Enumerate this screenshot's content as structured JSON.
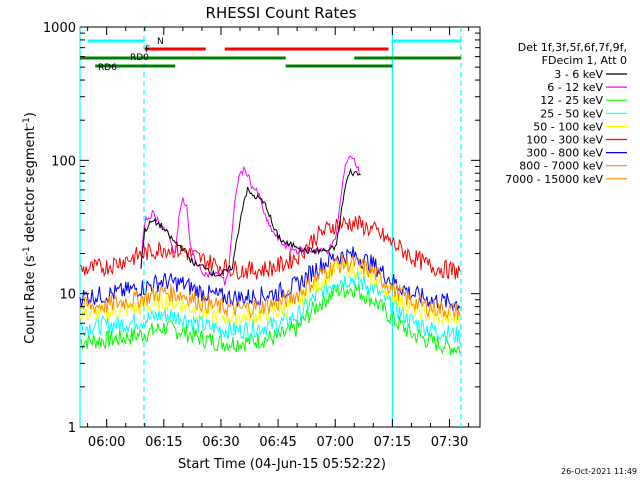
{
  "chart_data": {
    "type": "line",
    "title": "RHESSI Count Rates",
    "xlabel": "Start Time (04-Jun-15 05:52:22)",
    "ylabel_pre": "Count Rate (s",
    "ylabel_sup1": "-1",
    "ylabel_mid": " detector segment",
    "ylabel_sup2": "-1",
    "ylabel_post": ")",
    "xlim": [
      -7,
      98
    ],
    "ylim": [
      1,
      1000
    ],
    "yscale": "log",
    "x_ticks": [
      "06:00",
      "06:15",
      "06:30",
      "06:45",
      "07:00",
      "07:15",
      "07:30"
    ],
    "x_tick_minutes": [
      0,
      15,
      30,
      45,
      60,
      75,
      90
    ],
    "y_ticks": [
      "1",
      "10",
      "100",
      "1000"
    ],
    "legend_header": [
      "Det 1f,3f,5f,6f,7f,9f,",
      "FDecim 1, Att 0"
    ],
    "legend_position": "right",
    "series": [
      {
        "name": "3 - 6 keV",
        "color": "#000000",
        "points": [
          [
            9,
            16
          ],
          [
            10,
            30
          ],
          [
            12,
            35
          ],
          [
            14,
            33
          ],
          [
            16,
            28
          ],
          [
            18,
            24
          ],
          [
            20,
            22
          ],
          [
            22,
            18
          ],
          [
            24,
            16
          ],
          [
            26,
            16
          ],
          [
            28,
            14
          ],
          [
            30,
            14
          ],
          [
            32,
            15
          ],
          [
            33,
            16
          ],
          [
            35,
            35
          ],
          [
            36,
            50
          ],
          [
            37,
            60
          ],
          [
            38,
            55
          ],
          [
            40,
            52
          ],
          [
            42,
            45
          ],
          [
            44,
            30
          ],
          [
            46,
            25
          ],
          [
            48,
            23
          ],
          [
            50,
            23
          ],
          [
            52,
            21
          ],
          [
            54,
            21
          ],
          [
            56,
            21
          ],
          [
            58,
            21
          ],
          [
            60,
            22
          ],
          [
            61,
            30
          ],
          [
            62,
            50
          ],
          [
            63,
            70
          ],
          [
            64,
            82
          ],
          [
            65,
            80
          ],
          [
            66,
            80
          ],
          [
            67,
            75
          ]
        ]
      },
      {
        "name": "6 - 12 keV",
        "color": "#ff00ff",
        "points": [
          [
            9,
            16
          ],
          [
            10,
            35
          ],
          [
            12,
            40
          ],
          [
            14,
            34
          ],
          [
            16,
            28
          ],
          [
            18,
            20
          ],
          [
            19,
            40
          ],
          [
            20,
            50
          ],
          [
            21,
            45
          ],
          [
            22,
            22
          ],
          [
            24,
            16
          ],
          [
            26,
            14
          ],
          [
            28,
            14
          ],
          [
            30,
            14
          ],
          [
            31,
            12
          ],
          [
            32,
            15
          ],
          [
            33,
            30
          ],
          [
            34,
            60
          ],
          [
            35,
            80
          ],
          [
            36,
            84
          ],
          [
            37,
            80
          ],
          [
            38,
            65
          ],
          [
            40,
            55
          ],
          [
            42,
            35
          ],
          [
            44,
            28
          ],
          [
            46,
            24
          ],
          [
            48,
            22
          ],
          [
            50,
            21
          ],
          [
            52,
            21
          ],
          [
            54,
            21
          ],
          [
            56,
            21
          ],
          [
            58,
            21
          ],
          [
            60,
            25
          ],
          [
            61,
            40
          ],
          [
            62,
            70
          ],
          [
            63,
            100
          ],
          [
            64,
            110
          ],
          [
            65,
            100
          ],
          [
            66,
            85
          ],
          [
            67,
            75
          ]
        ]
      },
      {
        "name": "12 - 25 keV",
        "color": "#00ff00",
        "points": [
          [
            -7,
            4.4
          ],
          [
            0,
            4.5
          ],
          [
            5,
            4.7
          ],
          [
            10,
            5.0
          ],
          [
            15,
            5.6
          ],
          [
            20,
            5.2
          ],
          [
            25,
            4.6
          ],
          [
            30,
            4.3
          ],
          [
            35,
            4.3
          ],
          [
            40,
            4.5
          ],
          [
            45,
            4.7
          ],
          [
            50,
            5.5
          ],
          [
            55,
            8.0
          ],
          [
            60,
            10.5
          ],
          [
            65,
            11.0
          ],
          [
            70,
            9.0
          ],
          [
            75,
            6.5
          ],
          [
            80,
            5.0
          ],
          [
            85,
            4.4
          ],
          [
            90,
            4.0
          ],
          [
            93,
            3.9
          ]
        ]
      },
      {
        "name": "25 - 50 keV",
        "color": "#00ffff",
        "points": [
          [
            -7,
            5.6
          ],
          [
            0,
            5.8
          ],
          [
            5,
            6.0
          ],
          [
            10,
            6.4
          ],
          [
            15,
            7.0
          ],
          [
            20,
            6.6
          ],
          [
            25,
            5.8
          ],
          [
            30,
            5.4
          ],
          [
            35,
            5.3
          ],
          [
            40,
            5.6
          ],
          [
            45,
            5.9
          ],
          [
            50,
            6.8
          ],
          [
            55,
            9.5
          ],
          [
            60,
            12.5
          ],
          [
            65,
            13.0
          ],
          [
            70,
            11.0
          ],
          [
            75,
            8.0
          ],
          [
            80,
            6.2
          ],
          [
            85,
            5.4
          ],
          [
            90,
            5.0
          ],
          [
            93,
            4.8
          ]
        ]
      },
      {
        "name": "50 - 100 keV",
        "color": "#ffff00",
        "points": [
          [
            -7,
            7.0
          ],
          [
            0,
            7.2
          ],
          [
            5,
            7.6
          ],
          [
            10,
            8.0
          ],
          [
            15,
            8.8
          ],
          [
            20,
            8.3
          ],
          [
            25,
            7.3
          ],
          [
            30,
            6.8
          ],
          [
            35,
            6.7
          ],
          [
            40,
            7.0
          ],
          [
            45,
            7.4
          ],
          [
            50,
            8.5
          ],
          [
            55,
            11.5
          ],
          [
            60,
            15.0
          ],
          [
            65,
            15.5
          ],
          [
            70,
            13.0
          ],
          [
            75,
            10.0
          ],
          [
            80,
            7.8
          ],
          [
            85,
            6.9
          ],
          [
            90,
            6.5
          ],
          [
            93,
            6.3
          ]
        ]
      },
      {
        "name": "100 - 300 keV",
        "color": "#ff0000",
        "points": [
          [
            -7,
            15
          ],
          [
            0,
            16
          ],
          [
            5,
            18
          ],
          [
            10,
            20
          ],
          [
            15,
            22
          ],
          [
            20,
            21
          ],
          [
            25,
            18
          ],
          [
            30,
            16
          ],
          [
            35,
            15
          ],
          [
            40,
            15
          ],
          [
            45,
            16
          ],
          [
            50,
            19
          ],
          [
            55,
            27
          ],
          [
            60,
            33
          ],
          [
            65,
            34
          ],
          [
            70,
            30
          ],
          [
            75,
            24
          ],
          [
            80,
            19
          ],
          [
            85,
            16
          ],
          [
            90,
            15
          ],
          [
            93,
            14.5
          ]
        ]
      },
      {
        "name": "300 - 800 keV",
        "color": "#0000ff",
        "points": [
          [
            -7,
            9.5
          ],
          [
            0,
            9.8
          ],
          [
            5,
            10.5
          ],
          [
            10,
            11.2
          ],
          [
            15,
            12.5
          ],
          [
            20,
            11.8
          ],
          [
            25,
            10.2
          ],
          [
            30,
            9.5
          ],
          [
            35,
            9.3
          ],
          [
            40,
            9.6
          ],
          [
            45,
            10.2
          ],
          [
            50,
            11.6
          ],
          [
            55,
            15.5
          ],
          [
            60,
            19.0
          ],
          [
            65,
            19.5
          ],
          [
            70,
            16.5
          ],
          [
            75,
            12.5
          ],
          [
            80,
            10.0
          ],
          [
            85,
            9.0
          ],
          [
            90,
            8.6
          ],
          [
            93,
            8.4
          ]
        ]
      },
      {
        "name": "800 - 7000 keV",
        "color": "#ff8c00",
        "points": [
          [
            -7,
            8.0
          ],
          [
            0,
            8.2
          ],
          [
            5,
            8.8
          ],
          [
            10,
            9.3
          ],
          [
            15,
            10.3
          ],
          [
            20,
            9.8
          ],
          [
            25,
            8.5
          ],
          [
            30,
            7.9
          ],
          [
            35,
            7.7
          ],
          [
            40,
            8.0
          ],
          [
            45,
            8.5
          ],
          [
            50,
            9.8
          ],
          [
            55,
            13.0
          ],
          [
            60,
            16.5
          ],
          [
            65,
            17.0
          ],
          [
            70,
            14.5
          ],
          [
            75,
            11.0
          ],
          [
            80,
            8.8
          ],
          [
            85,
            7.9
          ],
          [
            90,
            7.5
          ],
          [
            93,
            7.3
          ]
        ]
      },
      {
        "name": "7000 - 15000 keV",
        "color": "#ff8c00",
        "points": []
      }
    ],
    "flags": [
      {
        "label": "N",
        "color": "#00ffff",
        "segments": [
          [
            -5,
            10
          ],
          [
            75,
            93
          ]
        ]
      },
      {
        "label": "F",
        "color": "#ff0000",
        "segments": [
          [
            10,
            26
          ],
          [
            31,
            74
          ]
        ]
      },
      {
        "label": "RD0",
        "color": "#008000",
        "segments": [
          [
            -7,
            47
          ],
          [
            65,
            93
          ]
        ]
      },
      {
        "label": "RD6",
        "color": "#008000",
        "segments": [
          [
            -3,
            18
          ],
          [
            47,
            75
          ]
        ]
      }
    ],
    "vertical_lines": [
      {
        "x": -7,
        "style": "solid",
        "color": "#00ffff"
      },
      {
        "x": 9.8,
        "style": "dashed",
        "color": "#00ffff"
      },
      {
        "x": 75,
        "style": "solid",
        "color": "#00ffff"
      },
      {
        "x": 93,
        "style": "dashed",
        "color": "#00ffff"
      }
    ]
  },
  "footer": {
    "timestamp": "26-Oct-2021 11:49"
  }
}
